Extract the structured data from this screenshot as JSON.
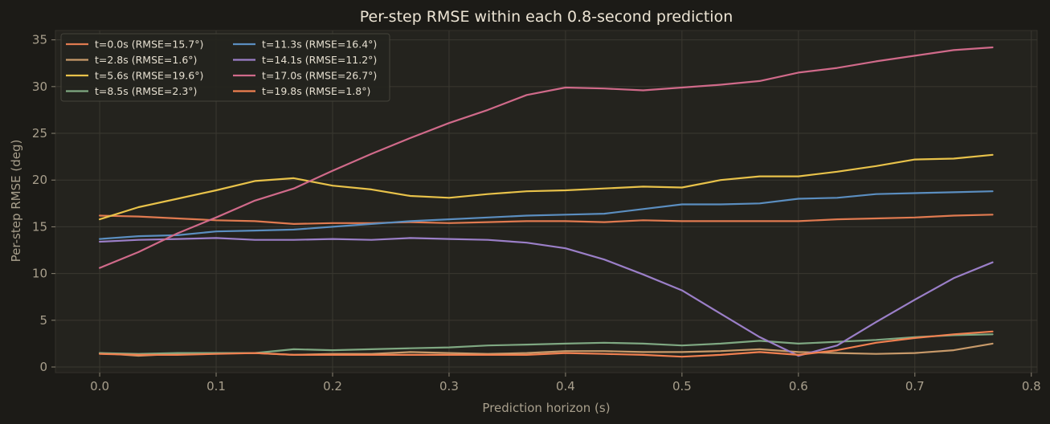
{
  "chart_data": {
    "type": "line",
    "title": "Per-step RMSE within each 0.8-second prediction",
    "xlabel": "Prediction horizon (s)",
    "ylabel": "Per-step RMSE (deg)",
    "xlim": [
      -0.038,
      0.805
    ],
    "ylim": [
      -0.6,
      36
    ],
    "xticks": [
      0.0,
      0.1,
      0.2,
      0.3,
      0.4,
      0.5,
      0.6,
      0.7,
      0.8
    ],
    "xtick_labels": [
      "0.0",
      "0.1",
      "0.2",
      "0.3",
      "0.4",
      "0.5",
      "0.6",
      "0.7",
      "0.8"
    ],
    "yticks": [
      0,
      5,
      10,
      15,
      20,
      25,
      30,
      35
    ],
    "ytick_labels": [
      "0",
      "5",
      "10",
      "15",
      "20",
      "25",
      "30",
      "35"
    ],
    "grid": true,
    "legend_position": "top-left",
    "x": [
      0.0,
      0.0333,
      0.0667,
      0.1,
      0.1333,
      0.1667,
      0.2,
      0.2333,
      0.2667,
      0.3,
      0.3333,
      0.3667,
      0.4,
      0.4333,
      0.4667,
      0.5,
      0.5333,
      0.5667,
      0.6,
      0.6333,
      0.6667,
      0.7,
      0.7333,
      0.7667
    ],
    "series": [
      {
        "name": "t=0.0s (RMSE=15.7°)",
        "color": "#e07a50",
        "values": [
          16.2,
          16.1,
          15.9,
          15.7,
          15.6,
          15.3,
          15.4,
          15.4,
          15.5,
          15.4,
          15.5,
          15.6,
          15.6,
          15.5,
          15.7,
          15.6,
          15.6,
          15.6,
          15.6,
          15.8,
          15.9,
          16.0,
          16.2,
          16.3
        ]
      },
      {
        "name": "t=2.8s (RMSE=1.6°)",
        "color": "#c89a6a",
        "values": [
          1.5,
          1.2,
          1.4,
          1.5,
          1.5,
          1.3,
          1.4,
          1.4,
          1.6,
          1.5,
          1.4,
          1.5,
          1.7,
          1.7,
          1.6,
          1.6,
          1.7,
          1.9,
          1.6,
          1.5,
          1.4,
          1.5,
          1.8,
          2.5
        ]
      },
      {
        "name": "t=5.6s (RMSE=19.6°)",
        "color": "#e8c24a",
        "values": [
          15.8,
          17.1,
          18.0,
          18.9,
          19.9,
          20.2,
          19.4,
          19.0,
          18.3,
          18.1,
          18.5,
          18.8,
          18.9,
          19.1,
          19.3,
          19.2,
          20.0,
          20.4,
          20.4,
          20.9,
          21.5,
          22.2,
          22.3,
          22.7
        ]
      },
      {
        "name": "t=8.5s (RMSE=2.3°)",
        "color": "#7fa882",
        "values": [
          1.5,
          1.4,
          1.5,
          1.5,
          1.5,
          1.9,
          1.8,
          1.9,
          2.0,
          2.1,
          2.3,
          2.4,
          2.5,
          2.6,
          2.5,
          2.3,
          2.5,
          2.8,
          2.5,
          2.7,
          2.9,
          3.2,
          3.4,
          3.5
        ]
      },
      {
        "name": "t=11.3s (RMSE=16.4°)",
        "color": "#5b8ec0",
        "values": [
          13.7,
          14.0,
          14.1,
          14.5,
          14.6,
          14.7,
          15.0,
          15.3,
          15.6,
          15.8,
          16.0,
          16.2,
          16.3,
          16.4,
          16.9,
          17.4,
          17.4,
          17.5,
          18.0,
          18.1,
          18.5,
          18.6,
          18.7,
          18.8
        ]
      },
      {
        "name": "t=14.1s (RMSE=11.2°)",
        "color": "#9b7fc8",
        "values": [
          13.4,
          13.6,
          13.7,
          13.8,
          13.6,
          13.6,
          13.7,
          13.6,
          13.8,
          13.7,
          13.6,
          13.3,
          12.7,
          11.5,
          9.9,
          8.2,
          5.7,
          3.2,
          1.2,
          2.3,
          4.8,
          7.2,
          9.5,
          11.2
        ]
      },
      {
        "name": "t=17.0s (RMSE=26.7°)",
        "color": "#d06a8a",
        "values": [
          10.6,
          12.3,
          14.3,
          16.0,
          17.8,
          19.1,
          21.0,
          22.8,
          24.5,
          26.1,
          27.5,
          29.1,
          29.9,
          29.8,
          29.6,
          29.9,
          30.2,
          30.6,
          31.5,
          32.0,
          32.7,
          33.3,
          33.9,
          34.2
        ]
      },
      {
        "name": "t=19.8s (RMSE=1.8°)",
        "color": "#f08050",
        "values": [
          1.4,
          1.3,
          1.3,
          1.4,
          1.5,
          1.3,
          1.3,
          1.3,
          1.3,
          1.3,
          1.3,
          1.3,
          1.5,
          1.4,
          1.3,
          1.1,
          1.3,
          1.6,
          1.3,
          1.8,
          2.6,
          3.1,
          3.5,
          3.8
        ]
      }
    ]
  }
}
